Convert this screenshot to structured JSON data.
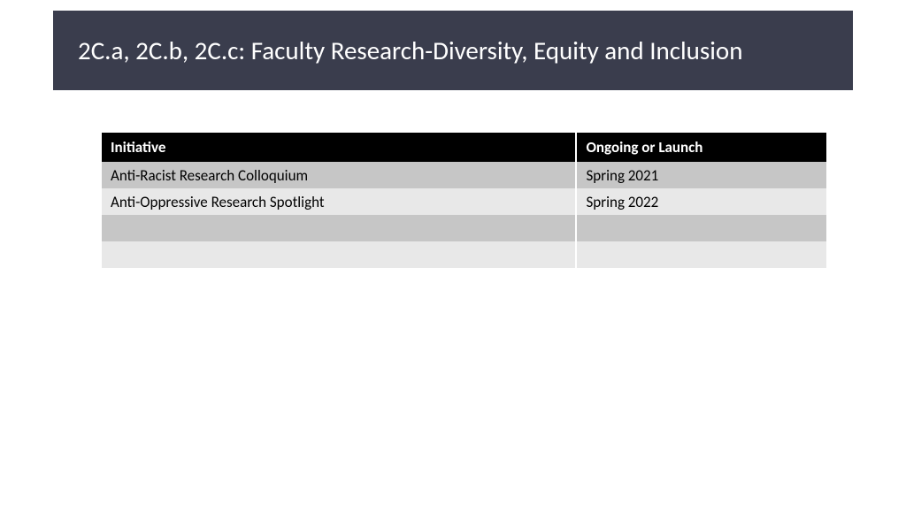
{
  "title": "2C.a, 2C.b, 2C.c:  Faculty Research-Diversity, Equity and Inclusion",
  "title_bar_bg": "#3a3d4d",
  "table": {
    "header_bg": "#000000",
    "header_color": "#ffffff",
    "row_odd_bg": "#c6c6c6",
    "row_even_bg": "#e8e8e8",
    "columns": [
      "Initiative",
      "Ongoing or Launch"
    ],
    "col_widths_pct": [
      65.5,
      34.5
    ],
    "rows": [
      [
        "Anti-Racist Research Colloquium",
        "Spring 2021"
      ],
      [
        "Anti-Oppressive Research Spotlight",
        "Spring 2022"
      ],
      [
        "",
        ""
      ],
      [
        "",
        ""
      ]
    ],
    "font_size_pt": 13
  }
}
